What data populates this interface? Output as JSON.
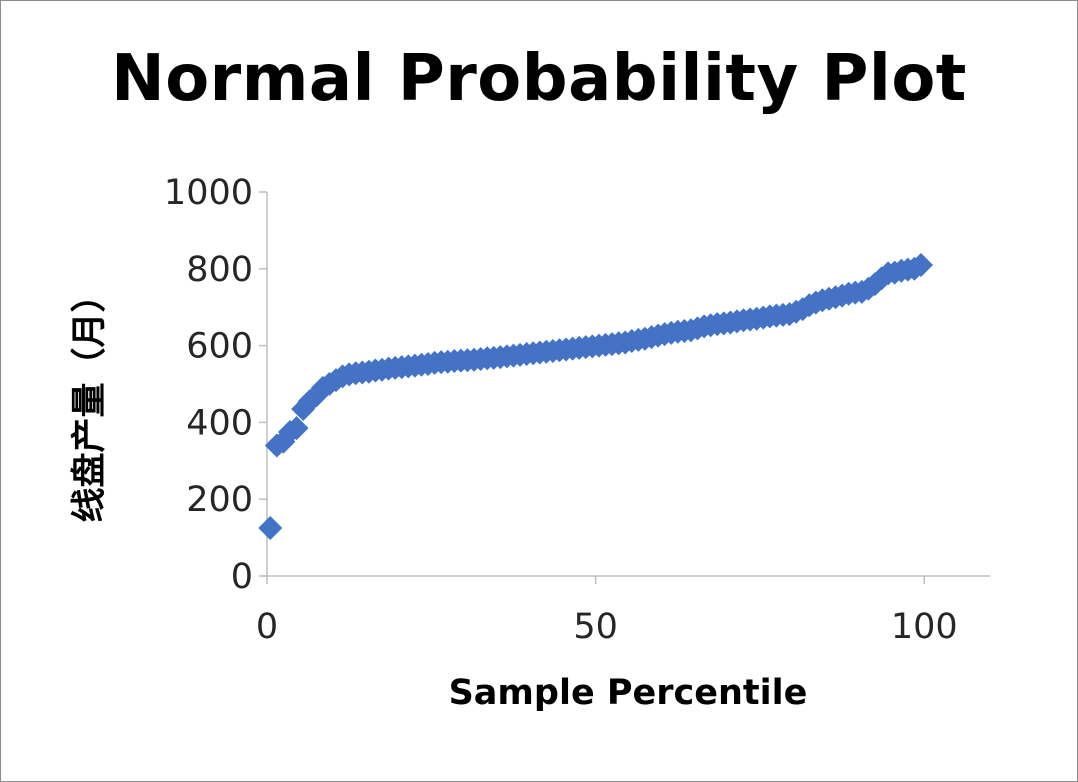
{
  "chart_data": {
    "type": "scatter",
    "title": "Normal Probability Plot",
    "xlabel": "Sample Percentile",
    "ylabel": "线盘产量（月）",
    "xlim": [
      0,
      110
    ],
    "ylim": [
      0,
      1000
    ],
    "x_ticks": [
      0,
      50,
      100
    ],
    "y_ticks": [
      0,
      200,
      400,
      600,
      800,
      1000
    ],
    "grid": false,
    "legend": "none",
    "marker": "diamond",
    "colors": {
      "series": "#4472c4",
      "axis": "#bfbfbf"
    },
    "series": [
      {
        "x": [
          0.5,
          1.5,
          2.5,
          3.5,
          4.5,
          5.5,
          6.5,
          7.5,
          8.5,
          9.5,
          10.5,
          11.5,
          12.5,
          13.5,
          14.5,
          15.5,
          16.5,
          17.5,
          18.5,
          19.5,
          20.5,
          21.5,
          22.5,
          23.5,
          24.5,
          25.5,
          26.5,
          27.5,
          28.5,
          29.5,
          30.5,
          31.5,
          32.5,
          33.5,
          34.5,
          35.5,
          36.5,
          37.5,
          38.5,
          39.5,
          40.5,
          41.5,
          42.5,
          43.5,
          44.5,
          45.5,
          46.5,
          47.5,
          48.5,
          49.5,
          50.5,
          51.5,
          52.5,
          53.5,
          54.5,
          55.5,
          56.5,
          57.5,
          58.5,
          59.5,
          60.5,
          61.5,
          62.5,
          63.5,
          64.5,
          65.5,
          66.5,
          67.5,
          68.5,
          69.5,
          70.5,
          71.5,
          72.5,
          73.5,
          74.5,
          75.5,
          76.5,
          77.5,
          78.5,
          79.5,
          80.5,
          81.5,
          82.5,
          83.5,
          84.5,
          85.5,
          86.5,
          87.5,
          88.5,
          89.5,
          90.5,
          91.5,
          92.5,
          93.5,
          94.5,
          95.5,
          96.5,
          97.5,
          98.5,
          99.5
        ],
        "y": [
          125,
          340,
          350,
          375,
          385,
          435,
          455,
          470,
          490,
          500,
          510,
          520,
          525,
          528,
          530,
          532,
          535,
          537,
          540,
          542,
          544,
          546,
          548,
          550,
          552,
          555,
          557,
          558,
          560,
          561,
          562,
          563,
          565,
          567,
          568,
          570,
          572,
          574,
          576,
          578,
          580,
          582,
          584,
          586,
          588,
          590,
          592,
          594,
          596,
          598,
          600,
          602,
          604,
          606,
          608,
          612,
          615,
          618,
          622,
          626,
          630,
          633,
          636,
          638,
          640,
          645,
          650,
          653,
          656,
          658,
          660,
          663,
          666,
          668,
          670,
          673,
          676,
          678,
          680,
          682,
          688,
          695,
          705,
          712,
          718,
          722,
          726,
          730,
          735,
          738,
          740,
          748,
          760,
          775,
          788,
          790,
          795,
          798,
          800,
          810
        ]
      }
    ]
  }
}
